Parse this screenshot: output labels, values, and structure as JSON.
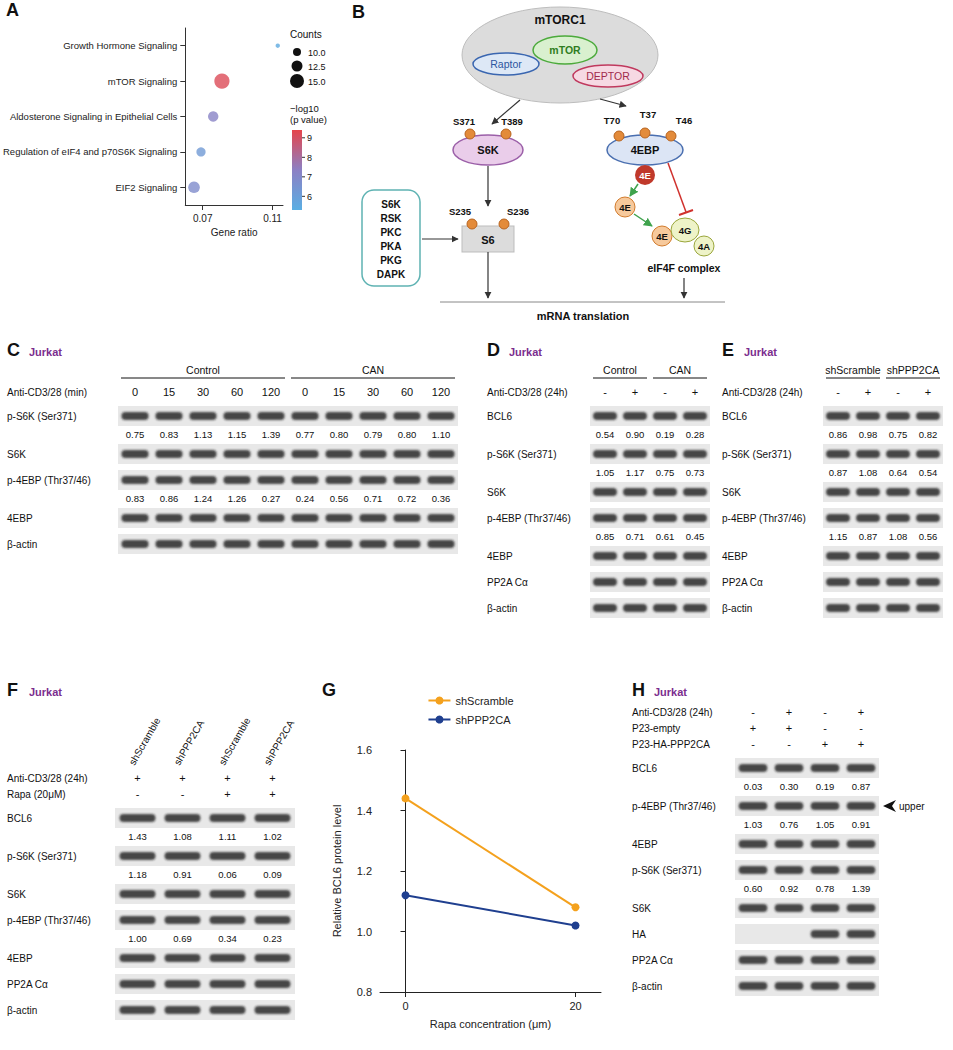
{
  "chart_data": [
    {
      "panel": "A",
      "type": "scatter",
      "categories": [
        "Growth Hormone Signaling",
        "mTOR Signaling",
        "Aldosterone Signaling in Epithelial Cells",
        "Regulation of eIF4 and p70S6K Signaling",
        "EIF2 Signaling"
      ],
      "x_label": "Gene ratio",
      "values": [
        0.113,
        0.081,
        0.076,
        0.069,
        0.065
      ],
      "sizes": [
        7,
        16,
        12,
        11,
        13
      ],
      "color_values": [
        5.5,
        9.2,
        7.2,
        6.2,
        6.8
      ],
      "xlim": [
        0.06,
        0.116
      ],
      "xticks": [
        0.07,
        0.11
      ],
      "size_legend": {
        "title": "Counts",
        "ticks": [
          {
            "value": 10,
            "label": "10.0"
          },
          12.5,
          {
            "value": 15,
            "label": "15.0"
          }
        ]
      },
      "color_bar": {
        "title": "−log10 (p value)",
        "range": [
          5.3,
          9.4
        ],
        "ticks": [
          6,
          7,
          8,
          9
        ],
        "colors": [
          "#5aaee3",
          "#8c80c4",
          "#e5454b"
        ]
      },
      "marker": "circle",
      "grid": false
    },
    {
      "panel": "G",
      "type": "line",
      "x_label": "Rapa concentration (μm)",
      "y_label": "Relative BCL6 protein level",
      "x": [
        0,
        20
      ],
      "series": [
        {
          "name": "shScramble",
          "color": "#f4a11d",
          "values": [
            1.44,
            1.08
          ]
        },
        {
          "name": "shPPP2CA",
          "color": "#1f3f8f",
          "values": [
            1.12,
            1.02
          ]
        }
      ],
      "xlim": [
        -3,
        23
      ],
      "xticks": [
        0,
        20
      ],
      "ylim": [
        0.8,
        1.6
      ],
      "yticks": [
        0.8,
        {
          "value": 1,
          "label": "1.0"
        },
        1.2,
        1.4,
        1.6
      ],
      "legend": "top",
      "marker": "circle",
      "grid": false
    }
  ],
  "diagram": {
    "panel": "B",
    "complex": "mTORC1",
    "components": [
      "Raptor",
      "mTOR",
      "DEPTOR"
    ],
    "s6k": {
      "label": "S6K",
      "sites": [
        "S371",
        "T389"
      ]
    },
    "ebp": {
      "label": "4EBP",
      "sites": [
        "T70",
        "T37",
        "T46"
      ],
      "bound": "4E"
    },
    "s6": {
      "label": "S6",
      "sites": [
        "S235",
        "S236"
      ]
    },
    "kinases": [
      "S6K",
      "RSK",
      "PKC",
      "PKA",
      "PKG",
      "DAPK"
    ],
    "eif4f": {
      "free": "4E",
      "components": [
        "4E",
        "4G",
        "4A"
      ],
      "label": "eIF4F complex"
    },
    "output": "mRNA translation"
  },
  "blots": [
    {
      "panel": "C",
      "cell": "Jurkat",
      "groups": [
        {
          "label": "Control",
          "lanes": 5
        },
        {
          "label": "CAN",
          "lanes": 5
        }
      ],
      "treatments": [
        {
          "label": "Anti-CD3/28 (min)",
          "marks": [
            "0",
            "15",
            "30",
            "60",
            "120",
            "0",
            "15",
            "30",
            "60",
            "120"
          ]
        }
      ],
      "rows": [
        {
          "label": "p-S6K (Ser371)",
          "quant": [
            "0.75",
            "0.83",
            "1.13",
            "1.15",
            "1.39",
            "0.77",
            "0.80",
            "0.79",
            "0.80",
            "1.10"
          ]
        },
        {
          "label": "S6K"
        },
        {
          "label": "p-4EBP (Thr37/46)",
          "quant": [
            "0.83",
            "0.86",
            "1.24",
            "1.26",
            "0.27",
            "0.24",
            "0.56",
            "0.71",
            "0.72",
            "0.36"
          ]
        },
        {
          "label": "4EBP"
        },
        {
          "label": "β-actin"
        }
      ]
    },
    {
      "panel": "D",
      "cell": "Jurkat",
      "groups": [
        {
          "label": "Control",
          "lanes": 2
        },
        {
          "label": "CAN",
          "lanes": 2
        }
      ],
      "treatments": [
        {
          "label": "Anti-CD3/28 (24h)",
          "marks": [
            "-",
            "+",
            "-",
            "+"
          ]
        }
      ],
      "rows": [
        {
          "label": "BCL6",
          "quant": [
            "0.54",
            "0.90",
            "0.19",
            "0.28"
          ]
        },
        {
          "label": "p-S6K (Ser371)",
          "quant": [
            "1.05",
            "1.17",
            "0.75",
            "0.73"
          ]
        },
        {
          "label": "S6K"
        },
        {
          "label": "p-4EBP (Thr37/46)",
          "quant": [
            "0.85",
            "0.71",
            "0.61",
            "0.45"
          ]
        },
        {
          "label": "4EBP"
        },
        {
          "label": "PP2A Cα"
        },
        {
          "label": "β-actin"
        }
      ]
    },
    {
      "panel": "E",
      "cell": "Jurkat",
      "groups": [
        {
          "label": "shScramble",
          "lanes": 2
        },
        {
          "label": "shPPP2CA",
          "lanes": 2
        }
      ],
      "treatments": [
        {
          "label": "Anti-CD3/28 (24h)",
          "marks": [
            "-",
            "+",
            "-",
            "+"
          ]
        }
      ],
      "rows": [
        {
          "label": "BCL6",
          "quant": [
            "0.86",
            "0.98",
            "0.75",
            "0.82"
          ]
        },
        {
          "label": "p-S6K (Ser371)",
          "quant": [
            "0.87",
            "1.08",
            "0.64",
            "0.54"
          ]
        },
        {
          "label": "S6K"
        },
        {
          "label": "p-4EBP (Thr37/46)",
          "quant": [
            "1.15",
            "0.87",
            "1.08",
            "0.56"
          ]
        },
        {
          "label": "4EBP"
        },
        {
          "label": "PP2A Cα"
        },
        {
          "label": "β-actin"
        }
      ]
    },
    {
      "panel": "F",
      "cell": "Jurkat",
      "lane_labels": [
        "shScramble",
        "shPPP2CA",
        "shScramble",
        "shPPP2CA"
      ],
      "treatments": [
        {
          "label": "Anti-CD3/28 (24h)",
          "marks": [
            "+",
            "+",
            "+",
            "+"
          ]
        },
        {
          "label": "Rapa (20μM)",
          "marks": [
            "-",
            "-",
            "+",
            "+"
          ]
        }
      ],
      "rows": [
        {
          "label": "BCL6",
          "quant": [
            "1.43",
            "1.08",
            "1.11",
            "1.02"
          ]
        },
        {
          "label": "p-S6K (Ser371)",
          "quant": [
            "1.18",
            "0.91",
            "0.06",
            "0.09"
          ]
        },
        {
          "label": "S6K"
        },
        {
          "label": "p-4EBP (Thr37/46)",
          "quant": [
            "1.00",
            "0.69",
            "0.34",
            "0.23"
          ]
        },
        {
          "label": "4EBP"
        },
        {
          "label": "PP2A Cα"
        },
        {
          "label": "β-actin"
        }
      ]
    },
    {
      "panel": "H",
      "cell": "Jurkat",
      "treatments": [
        {
          "label": "Anti-CD3/28 (24h)",
          "marks": [
            "-",
            "+",
            "-",
            "+"
          ]
        },
        {
          "label": "P23-empty",
          "marks": [
            "+",
            "+",
            "-",
            "-"
          ]
        },
        {
          "label": "P23-HA-PPP2CA",
          "marks": [
            "-",
            "-",
            "+",
            "+"
          ]
        }
      ],
      "rows": [
        {
          "label": "BCL6",
          "quant": [
            "0.03",
            "0.30",
            "0.19",
            "0.87"
          ]
        },
        {
          "label": "p-4EBP (Thr37/46)",
          "quant": [
            "1.03",
            "0.76",
            "1.05",
            "0.91"
          ],
          "annotation": "upper"
        },
        {
          "label": "4EBP"
        },
        {
          "label": "p-S6K (Ser371)",
          "quant": [
            "0.60",
            "0.92",
            "0.78",
            "1.39"
          ]
        },
        {
          "label": "S6K"
        },
        {
          "label": "HA",
          "present": [
            false,
            false,
            true,
            true
          ]
        },
        {
          "label": "PP2A Cα"
        },
        {
          "label": "β-actin"
        }
      ]
    }
  ]
}
